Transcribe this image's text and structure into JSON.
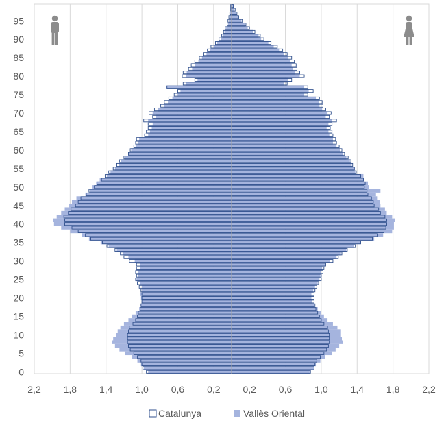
{
  "chart_data": {
    "type": "bar",
    "orientation": "horizontal-population-pyramid",
    "x_axis": {
      "ticks": [
        -2.2,
        -1.8,
        -1.4,
        -1.0,
        -0.6,
        -0.2,
        0.2,
        0.6,
        1.0,
        1.4,
        1.8,
        2.2
      ],
      "tick_labels": [
        "2,2",
        "1,8",
        "1,4",
        "1,0",
        "0,6",
        "0,2",
        "0,2",
        "0,6",
        "1,0",
        "1,4",
        "1,8",
        "2,2"
      ],
      "range": [
        -2.2,
        2.2
      ],
      "grid": true
    },
    "y_axis": {
      "ticks": [
        0,
        5,
        10,
        15,
        20,
        25,
        30,
        35,
        40,
        45,
        50,
        55,
        60,
        65,
        70,
        75,
        80,
        85,
        90,
        95
      ],
      "tick_labels": [
        "0",
        "5",
        "10",
        "15",
        "20",
        "25",
        "30",
        "35",
        "40",
        "45",
        "50",
        "55",
        "60",
        "65",
        "70",
        "75",
        "80",
        "85",
        "90",
        "95"
      ],
      "range": [
        0,
        100
      ]
    },
    "ages": [
      0,
      1,
      2,
      3,
      4,
      5,
      6,
      7,
      8,
      9,
      10,
      11,
      12,
      13,
      14,
      15,
      16,
      17,
      18,
      19,
      20,
      21,
      22,
      23,
      24,
      25,
      26,
      27,
      28,
      29,
      30,
      31,
      32,
      33,
      34,
      35,
      36,
      37,
      38,
      39,
      40,
      41,
      42,
      43,
      44,
      45,
      46,
      47,
      48,
      49,
      50,
      51,
      52,
      53,
      54,
      55,
      56,
      57,
      58,
      59,
      60,
      61,
      62,
      63,
      64,
      65,
      66,
      67,
      68,
      69,
      70,
      71,
      72,
      73,
      74,
      75,
      76,
      77,
      78,
      79,
      80,
      81,
      82,
      83,
      84,
      85,
      86,
      87,
      88,
      89,
      90,
      91,
      92,
      93,
      94,
      95,
      96,
      97,
      98,
      99
    ],
    "series": [
      {
        "name": "Catalunya",
        "style": "outline",
        "males": [
          0.95,
          0.99,
          1.0,
          1.01,
          1.05,
          1.09,
          1.13,
          1.15,
          1.16,
          1.16,
          1.16,
          1.15,
          1.14,
          1.1,
          1.07,
          1.05,
          1.04,
          1.02,
          1.01,
          1.0,
          1.0,
          1.0,
          1.01,
          1.03,
          1.05,
          1.07,
          1.06,
          1.07,
          1.06,
          1.06,
          1.14,
          1.2,
          1.24,
          1.3,
          1.39,
          1.44,
          1.57,
          1.63,
          1.71,
          1.78,
          1.86,
          1.86,
          1.87,
          1.82,
          1.79,
          1.74,
          1.71,
          1.68,
          1.62,
          1.59,
          1.53,
          1.5,
          1.45,
          1.41,
          1.37,
          1.32,
          1.28,
          1.25,
          1.2,
          1.15,
          1.13,
          1.09,
          1.07,
          1.06,
          0.97,
          0.95,
          0.93,
          0.93,
          0.98,
          0.88,
          0.92,
          0.86,
          0.79,
          0.75,
          0.7,
          0.64,
          0.6,
          0.72,
          0.54,
          0.41,
          0.55,
          0.54,
          0.48,
          0.45,
          0.41,
          0.36,
          0.31,
          0.27,
          0.23,
          0.18,
          0.14,
          0.11,
          0.09,
          0.07,
          0.05,
          0.04,
          0.03,
          0.02,
          0.01,
          0.01
        ],
        "females": [
          0.88,
          0.92,
          0.93,
          0.95,
          0.99,
          1.03,
          1.06,
          1.08,
          1.09,
          1.09,
          1.09,
          1.08,
          1.07,
          1.03,
          1.0,
          0.98,
          0.96,
          0.94,
          0.93,
          0.92,
          0.92,
          0.92,
          0.93,
          0.95,
          0.97,
          1.0,
          1.0,
          1.02,
          1.03,
          1.05,
          1.13,
          1.19,
          1.23,
          1.29,
          1.38,
          1.44,
          1.57,
          1.63,
          1.7,
          1.72,
          1.73,
          1.73,
          1.71,
          1.66,
          1.64,
          1.59,
          1.58,
          1.56,
          1.52,
          1.51,
          1.48,
          1.49,
          1.47,
          1.44,
          1.39,
          1.37,
          1.35,
          1.33,
          1.3,
          1.26,
          1.23,
          1.2,
          1.17,
          1.16,
          1.13,
          1.12,
          1.1,
          1.12,
          1.17,
          1.09,
          1.11,
          1.05,
          1.02,
          1.01,
          0.98,
          0.85,
          0.91,
          0.85,
          0.62,
          0.67,
          0.81,
          0.76,
          0.73,
          0.72,
          0.7,
          0.67,
          0.62,
          0.57,
          0.51,
          0.44,
          0.36,
          0.32,
          0.26,
          0.2,
          0.16,
          0.12,
          0.08,
          0.06,
          0.04,
          0.02
        ]
      },
      {
        "name": "Vallès Oriental",
        "style": "filled",
        "color": "#A5B4DE",
        "males": [
          0.93,
          0.98,
          1.01,
          1.05,
          1.11,
          1.19,
          1.25,
          1.3,
          1.33,
          1.32,
          1.29,
          1.27,
          1.24,
          1.2,
          1.15,
          1.11,
          1.07,
          1.03,
          1.01,
          1.0,
          1.01,
          1.02,
          1.0,
          1.0,
          1.02,
          1.06,
          1.04,
          1.04,
          1.02,
          1.02,
          1.08,
          1.15,
          1.21,
          1.28,
          1.37,
          1.46,
          1.59,
          1.67,
          1.8,
          1.9,
          1.98,
          1.99,
          1.95,
          1.9,
          1.86,
          1.81,
          1.78,
          1.73,
          1.63,
          1.58,
          1.55,
          1.51,
          1.47,
          1.39,
          1.35,
          1.3,
          1.26,
          1.23,
          1.19,
          1.15,
          1.12,
          1.07,
          1.04,
          1.03,
          0.93,
          0.91,
          0.89,
          0.88,
          0.93,
          0.84,
          0.88,
          0.82,
          0.75,
          0.71,
          0.66,
          0.6,
          0.57,
          0.73,
          0.51,
          0.38,
          0.51,
          0.5,
          0.44,
          0.41,
          0.37,
          0.33,
          0.28,
          0.24,
          0.2,
          0.16,
          0.12,
          0.1,
          0.08,
          0.06,
          0.04,
          0.03,
          0.02,
          0.02,
          0.01,
          0.01
        ],
        "females": [
          0.87,
          0.92,
          0.94,
          0.99,
          1.04,
          1.12,
          1.16,
          1.2,
          1.24,
          1.23,
          1.22,
          1.22,
          1.18,
          1.13,
          1.07,
          1.03,
          1.0,
          0.96,
          0.92,
          0.9,
          0.89,
          0.89,
          0.91,
          0.93,
          0.96,
          0.98,
          0.99,
          1.0,
          1.01,
          1.04,
          1.1,
          1.17,
          1.22,
          1.28,
          1.36,
          1.44,
          1.59,
          1.69,
          1.79,
          1.81,
          1.81,
          1.82,
          1.79,
          1.73,
          1.71,
          1.66,
          1.65,
          1.63,
          1.61,
          1.66,
          1.53,
          1.52,
          1.48,
          1.47,
          1.38,
          1.36,
          1.34,
          1.32,
          1.28,
          1.24,
          1.21,
          1.17,
          1.13,
          1.13,
          1.09,
          1.08,
          1.06,
          1.08,
          1.12,
          1.05,
          1.07,
          1.01,
          0.98,
          0.97,
          0.94,
          0.81,
          0.86,
          0.81,
          0.58,
          0.63,
          0.76,
          0.71,
          0.68,
          0.67,
          0.65,
          0.63,
          0.58,
          0.53,
          0.47,
          0.41,
          0.33,
          0.3,
          0.24,
          0.18,
          0.15,
          0.11,
          0.07,
          0.05,
          0.03,
          0.02
        ]
      }
    ],
    "legend": {
      "position": "bottom",
      "items": [
        {
          "label": "Catalunya",
          "swatch": "outline"
        },
        {
          "label": "Vallès Oriental",
          "swatch": "filled"
        }
      ]
    },
    "icons": {
      "left": "male-person-icon",
      "right": "female-person-icon"
    },
    "colors": {
      "fill": "#A5B4DE",
      "outline": "#2F4F8C",
      "grid": "#D9D9D9",
      "center_line": "#A6A6A6",
      "text": "#595959",
      "icon": "#8C8C8C"
    }
  }
}
